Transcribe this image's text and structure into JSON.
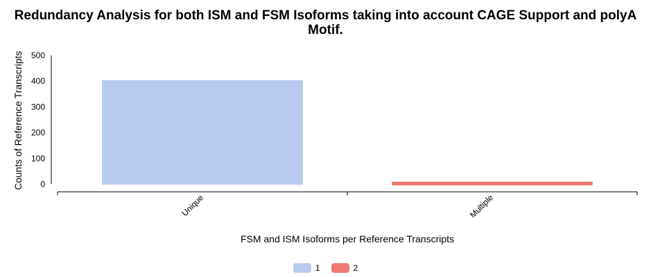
{
  "chart_data": {
    "type": "bar",
    "title_lines": [
      "Redundancy Analysis for both ISM and FSM Isoforms taking into account CAGE Support and polyA",
      "Motif."
    ],
    "xlabel": "FSM and ISM Isoforms per Reference Transcripts",
    "ylabel": "Counts of Reference Transcripts",
    "categories": [
      "Unique",
      "Multiple"
    ],
    "series": [
      {
        "name": "1",
        "values": [
          402,
          0
        ],
        "color": "#b8cbef"
      },
      {
        "name": "2",
        "values": [
          0,
          9
        ],
        "color": "#f07a72"
      }
    ],
    "ylim": [
      0,
      500
    ],
    "yticks": [
      0,
      100,
      200,
      300,
      400,
      500
    ],
    "legend_position": "bottom"
  }
}
